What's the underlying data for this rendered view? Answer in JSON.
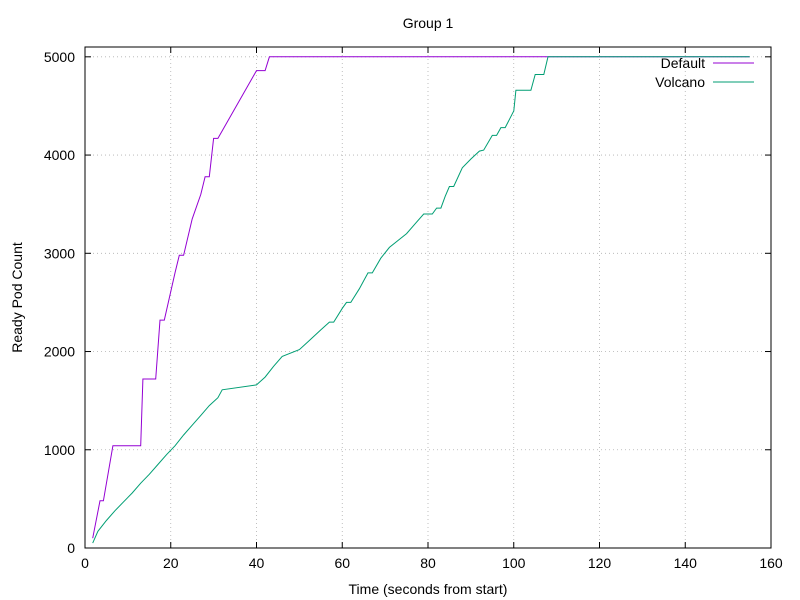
{
  "chart_data": {
    "type": "line",
    "title": "Group 1",
    "xlabel": "Time (seconds from start)",
    "ylabel": "Ready Pod Count",
    "xlim": [
      0,
      160
    ],
    "ylim": [
      0,
      5100
    ],
    "x_ticks": [
      0,
      20,
      40,
      60,
      80,
      100,
      120,
      140,
      160
    ],
    "y_ticks": [
      0,
      1000,
      2000,
      3000,
      4000,
      5000
    ],
    "grid": true,
    "legend_position": "top-right",
    "series": [
      {
        "name": "Default",
        "color": "#9400d3",
        "points": [
          [
            1.8,
            100
          ],
          [
            3.5,
            480
          ],
          [
            4.3,
            480
          ],
          [
            6.5,
            1040
          ],
          [
            13,
            1040
          ],
          [
            13.5,
            1720
          ],
          [
            16.5,
            1720
          ],
          [
            17.5,
            2320
          ],
          [
            18.5,
            2320
          ],
          [
            21,
            2800
          ],
          [
            22,
            2980
          ],
          [
            23,
            2980
          ],
          [
            25,
            3350
          ],
          [
            27,
            3600
          ],
          [
            28,
            3780
          ],
          [
            29,
            3780
          ],
          [
            30,
            4170
          ],
          [
            31,
            4170
          ],
          [
            40,
            4860
          ],
          [
            42,
            4860
          ],
          [
            43,
            5000
          ],
          [
            155,
            5000
          ]
        ]
      },
      {
        "name": "Volcano",
        "color": "#009e73",
        "points": [
          [
            1.8,
            50
          ],
          [
            3,
            170
          ],
          [
            5,
            280
          ],
          [
            7,
            380
          ],
          [
            9,
            470
          ],
          [
            11,
            560
          ],
          [
            13,
            660
          ],
          [
            15,
            750
          ],
          [
            17,
            850
          ],
          [
            19,
            950
          ],
          [
            21,
            1040
          ],
          [
            23,
            1150
          ],
          [
            25,
            1250
          ],
          [
            27,
            1350
          ],
          [
            29,
            1450
          ],
          [
            31,
            1530
          ],
          [
            32,
            1610
          ],
          [
            40,
            1660
          ],
          [
            42,
            1740
          ],
          [
            44,
            1850
          ],
          [
            46,
            1950
          ],
          [
            50,
            2020
          ],
          [
            52,
            2100
          ],
          [
            55,
            2220
          ],
          [
            57,
            2300
          ],
          [
            58,
            2300
          ],
          [
            60,
            2440
          ],
          [
            61,
            2500
          ],
          [
            62,
            2500
          ],
          [
            64,
            2640
          ],
          [
            65,
            2720
          ],
          [
            66,
            2800
          ],
          [
            67,
            2800
          ],
          [
            69,
            2950
          ],
          [
            71,
            3060
          ],
          [
            73,
            3130
          ],
          [
            75,
            3200
          ],
          [
            77,
            3300
          ],
          [
            79,
            3400
          ],
          [
            81,
            3400
          ],
          [
            82,
            3460
          ],
          [
            83,
            3460
          ],
          [
            84,
            3580
          ],
          [
            85,
            3680
          ],
          [
            86,
            3680
          ],
          [
            88,
            3870
          ],
          [
            90,
            3960
          ],
          [
            92,
            4040
          ],
          [
            93,
            4050
          ],
          [
            95,
            4200
          ],
          [
            96,
            4200
          ],
          [
            97,
            4280
          ],
          [
            98,
            4280
          ],
          [
            100,
            4450
          ],
          [
            100.5,
            4660
          ],
          [
            104,
            4660
          ],
          [
            105,
            4820
          ],
          [
            107,
            4820
          ],
          [
            108,
            5000
          ],
          [
            155,
            5000
          ]
        ]
      }
    ]
  }
}
